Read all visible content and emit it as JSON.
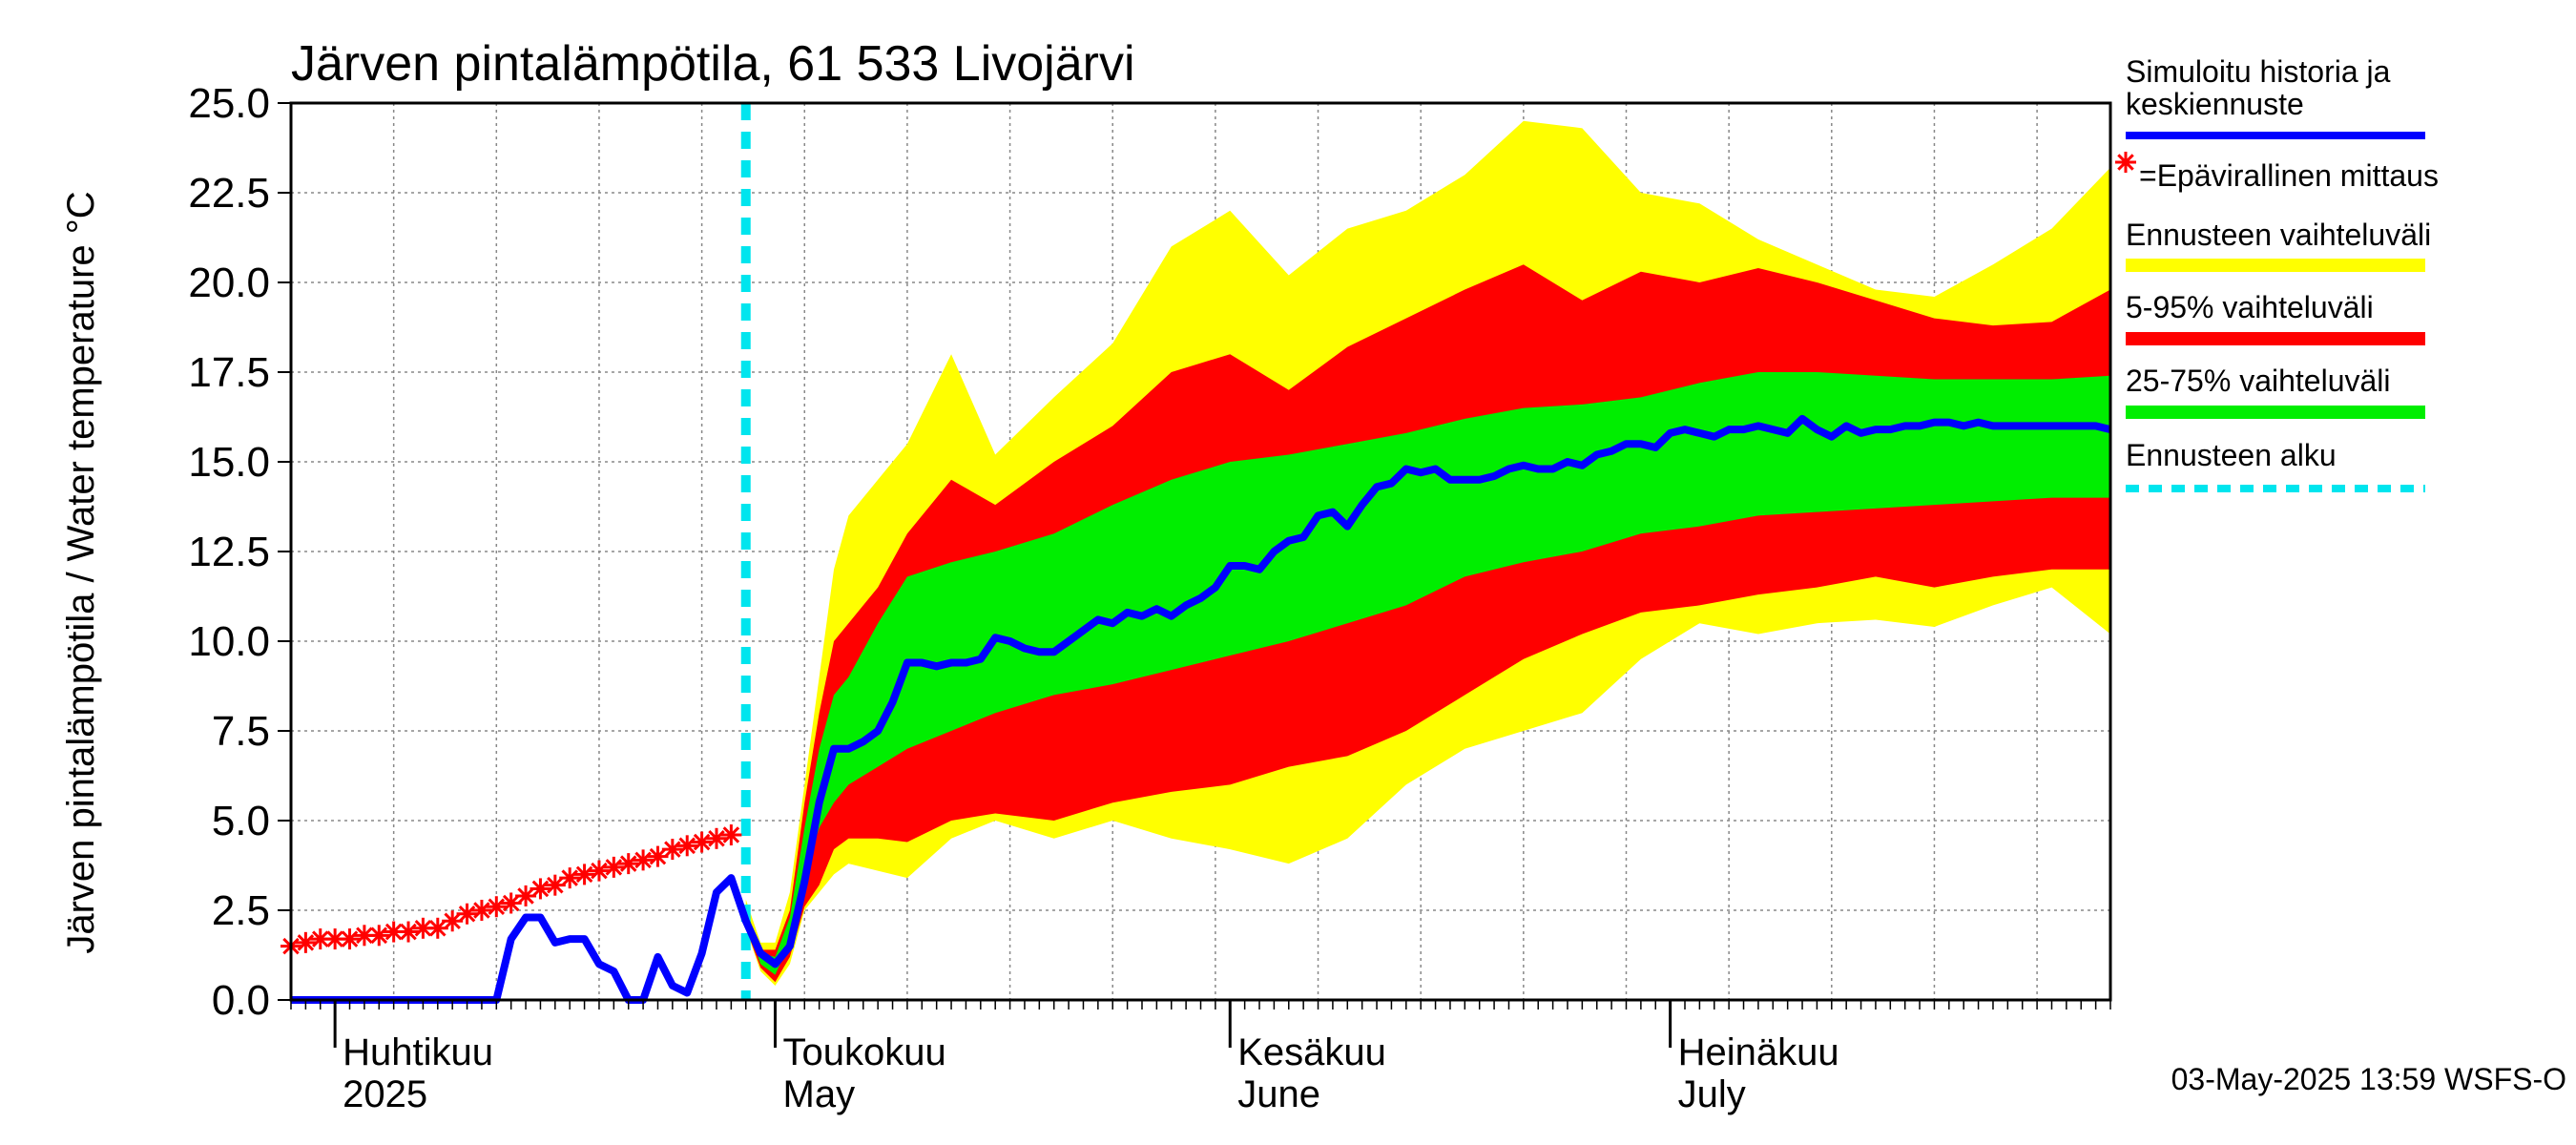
{
  "chart_data": {
    "type": "area",
    "title": "Järven pintalämpötila, 61 533 Livojärvi",
    "ylabel": "Järven pintalämpötila / Water temperature °C",
    "ylim": [
      0,
      25
    ],
    "x_start": "2025-03-29",
    "x_end": "2025-07-31",
    "forecast_start": "2025-04-29",
    "y_ticks": [
      "0.0",
      "2.5",
      "5.0",
      "7.5",
      "10.0",
      "12.5",
      "15.0",
      "17.5",
      "20.0",
      "22.5",
      "25.0"
    ],
    "month_labels": [
      {
        "fi": "Huhtikuu",
        "en": "2025",
        "date": "2025-04-01"
      },
      {
        "fi": "Toukokuu",
        "en": "May",
        "date": "2025-05-01"
      },
      {
        "fi": "Kesäkuu",
        "en": "June",
        "date": "2025-06-01"
      },
      {
        "fi": "Heinäkuu",
        "en": "July",
        "date": "2025-07-01"
      }
    ],
    "grid": true,
    "legend_position": "right",
    "x_days": [
      0,
      7,
      14,
      21,
      28,
      35,
      42,
      49,
      56,
      63,
      70,
      77,
      84,
      91,
      98,
      105,
      112,
      119,
      124
    ],
    "band_outer": {
      "name": "Ennusteen vaihteluväli",
      "color": "#ffff00",
      "x_days": [
        31,
        32,
        33,
        34,
        35,
        36,
        37,
        38,
        40,
        42,
        45,
        48,
        52,
        56,
        60,
        64,
        68,
        72,
        76,
        80,
        84,
        88,
        92,
        96,
        100,
        104,
        108,
        112,
        116,
        120,
        124
      ],
      "low": [
        2.0,
        0.8,
        0.4,
        1.0,
        2.5,
        3.0,
        3.5,
        3.8,
        3.6,
        3.4,
        4.5,
        5.0,
        4.5,
        5.0,
        4.5,
        4.2,
        3.8,
        4.5,
        6.0,
        7.0,
        7.5,
        8.0,
        9.5,
        10.5,
        10.2,
        10.5,
        10.6,
        10.4,
        11.0,
        11.5,
        10.2
      ],
      "high": [
        2.8,
        1.6,
        1.6,
        3.0,
        6.0,
        9.0,
        12.0,
        13.5,
        14.5,
        15.5,
        18.0,
        15.2,
        16.8,
        18.3,
        21.0,
        22.0,
        20.2,
        21.5,
        22.0,
        23.0,
        24.5,
        24.3,
        22.5,
        22.2,
        21.2,
        20.5,
        19.8,
        19.6,
        20.5,
        21.5,
        23.2
      ]
    },
    "band_5_95": {
      "name": "5-95% vaihteluväli",
      "color": "#ff0000",
      "x_days": [
        31,
        32,
        33,
        34,
        35,
        36,
        37,
        38,
        40,
        42,
        45,
        48,
        52,
        56,
        60,
        64,
        68,
        72,
        76,
        80,
        84,
        88,
        92,
        96,
        100,
        104,
        108,
        112,
        116,
        120,
        124
      ],
      "low": [
        2.0,
        0.9,
        0.5,
        1.2,
        2.6,
        3.2,
        4.2,
        4.5,
        4.5,
        4.4,
        5.0,
        5.2,
        5.0,
        5.5,
        5.8,
        6.0,
        6.5,
        6.8,
        7.5,
        8.5,
        9.5,
        10.2,
        10.8,
        11.0,
        11.3,
        11.5,
        11.8,
        11.5,
        11.8,
        12.0,
        12.0
      ],
      "high": [
        2.5,
        1.4,
        1.4,
        2.5,
        5.5,
        8.0,
        10.0,
        10.5,
        11.5,
        13.0,
        14.5,
        13.8,
        15.0,
        16.0,
        17.5,
        18.0,
        17.0,
        18.2,
        19.0,
        19.8,
        20.5,
        19.5,
        20.3,
        20.0,
        20.4,
        20.0,
        19.5,
        19.0,
        18.8,
        18.9,
        19.8
      ]
    },
    "band_25_75": {
      "name": "25-75% vaihteluväli",
      "color": "#00ee00",
      "x_days": [
        31,
        32,
        33,
        34,
        35,
        36,
        37,
        38,
        40,
        42,
        45,
        48,
        52,
        56,
        60,
        64,
        68,
        72,
        76,
        80,
        84,
        88,
        92,
        96,
        100,
        104,
        108,
        112,
        116,
        120,
        124
      ],
      "low": [
        2.2,
        1.0,
        0.7,
        1.6,
        3.5,
        4.8,
        5.5,
        6.0,
        6.5,
        7.0,
        7.5,
        8.0,
        8.5,
        8.8,
        9.2,
        9.6,
        10.0,
        10.5,
        11.0,
        11.8,
        12.2,
        12.5,
        13.0,
        13.2,
        13.5,
        13.6,
        13.7,
        13.8,
        13.9,
        14.0,
        14.0
      ],
      "high": [
        2.6,
        1.3,
        1.2,
        2.3,
        4.8,
        7.0,
        8.5,
        9.0,
        10.5,
        11.8,
        12.2,
        12.5,
        13.0,
        13.8,
        14.5,
        15.0,
        15.2,
        15.5,
        15.8,
        16.2,
        16.5,
        16.6,
        16.8,
        17.2,
        17.5,
        17.5,
        17.4,
        17.3,
        17.3,
        17.3,
        17.4
      ]
    },
    "series": [
      {
        "name": "Simuloitu historia ja keskiennuste",
        "color": "#0000ff",
        "x_days": [
          0,
          3,
          6,
          9,
          12,
          14,
          15,
          16,
          17,
          18,
          19,
          20,
          21,
          22,
          23,
          24,
          25,
          26,
          27,
          28,
          29,
          30,
          31,
          32,
          33,
          34,
          35,
          36,
          37,
          38,
          39,
          40,
          41,
          42,
          43,
          44,
          45,
          46,
          47,
          48,
          49,
          50,
          51,
          52,
          53,
          54,
          55,
          56,
          57,
          58,
          59,
          60,
          61,
          62,
          63,
          64,
          65,
          66,
          67,
          68,
          69,
          70,
          71,
          72,
          73,
          74,
          75,
          76,
          77,
          78,
          79,
          80,
          81,
          82,
          83,
          84,
          85,
          86,
          87,
          88,
          89,
          90,
          91,
          92,
          93,
          94,
          95,
          96,
          97,
          98,
          99,
          100,
          101,
          102,
          103,
          104,
          105,
          106,
          107,
          108,
          109,
          110,
          111,
          112,
          113,
          114,
          115,
          116,
          117,
          118,
          119,
          120,
          121,
          122,
          123,
          124
        ],
        "values": [
          0,
          0,
          0,
          0,
          0,
          0,
          1.7,
          2.3,
          2.3,
          1.6,
          1.7,
          1.7,
          1.0,
          0.8,
          0.0,
          0.0,
          1.2,
          0.4,
          0.2,
          1.3,
          3.0,
          3.4,
          2.2,
          1.3,
          1.0,
          1.5,
          3.3,
          5.5,
          7.0,
          7.0,
          7.2,
          7.5,
          8.3,
          9.4,
          9.4,
          9.3,
          9.4,
          9.4,
          9.5,
          10.1,
          10.0,
          9.8,
          9.7,
          9.7,
          10.0,
          10.3,
          10.6,
          10.5,
          10.8,
          10.7,
          10.9,
          10.7,
          11.0,
          11.2,
          11.5,
          12.1,
          12.1,
          12.0,
          12.5,
          12.8,
          12.9,
          13.5,
          13.6,
          13.2,
          13.8,
          14.3,
          14.4,
          14.8,
          14.7,
          14.8,
          14.5,
          14.5,
          14.5,
          14.6,
          14.8,
          14.9,
          14.8,
          14.8,
          15.0,
          14.9,
          15.2,
          15.3,
          15.5,
          15.5,
          15.4,
          15.8,
          15.9,
          15.8,
          15.7,
          15.9,
          15.9,
          16.0,
          15.9,
          15.8,
          16.2,
          15.9,
          15.7,
          16.0,
          15.8,
          15.9,
          15.9,
          16.0,
          16.0,
          16.1,
          16.1,
          16.0,
          16.1,
          16.0,
          16.0,
          16.0,
          16.0,
          16.0,
          16.0,
          16.0,
          16.0,
          15.9
        ]
      },
      {
        "name": "=Epävirallinen mittaus",
        "color": "#ff0000",
        "x_days": [
          0,
          1,
          2,
          3,
          4,
          5,
          6,
          7,
          8,
          9,
          10,
          11,
          12,
          13,
          14,
          15,
          16,
          17,
          18,
          19,
          20,
          21,
          22,
          23,
          24,
          25,
          26,
          27,
          28,
          29,
          30
        ],
        "values": [
          1.5,
          1.6,
          1.7,
          1.7,
          1.7,
          1.8,
          1.8,
          1.9,
          1.9,
          2.0,
          2.0,
          2.2,
          2.4,
          2.5,
          2.6,
          2.7,
          2.9,
          3.1,
          3.2,
          3.4,
          3.5,
          3.6,
          3.7,
          3.8,
          3.9,
          4.0,
          4.2,
          4.3,
          4.4,
          4.5,
          4.6
        ]
      }
    ],
    "legend_entries": [
      {
        "label": "Simuloitu historia ja keskiennuste",
        "color": "#0000ff",
        "style": "line"
      },
      {
        "label": "=Epävirallinen mittaus",
        "color": "#ff0000",
        "style": "marker"
      },
      {
        "label": "Ennusteen vaihteluväli",
        "color": "#ffff00",
        "style": "thick"
      },
      {
        "label": "5-95% vaihteluväli",
        "color": "#ff0000",
        "style": "thick"
      },
      {
        "label": "25-75% vaihteluväli",
        "color": "#00ee00",
        "style": "thick"
      },
      {
        "label": "Ennusteen alku",
        "color": "#00e5ee",
        "style": "dashed"
      }
    ],
    "footer": "03-May-2025 13:59 WSFS-O"
  }
}
